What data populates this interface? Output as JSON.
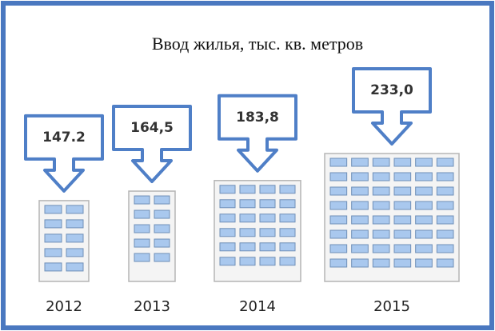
{
  "chart_data": {
    "type": "bar",
    "title": "Ввод жилья, тыс. кв. метров",
    "categories": [
      "2012",
      "2013",
      "2014",
      "2015"
    ],
    "values": [
      147.2,
      164.5,
      183.8,
      233.0
    ],
    "value_labels": [
      "147.2",
      "164,5",
      "183,8",
      "233,0"
    ],
    "color": "#4f7fc7"
  }
}
